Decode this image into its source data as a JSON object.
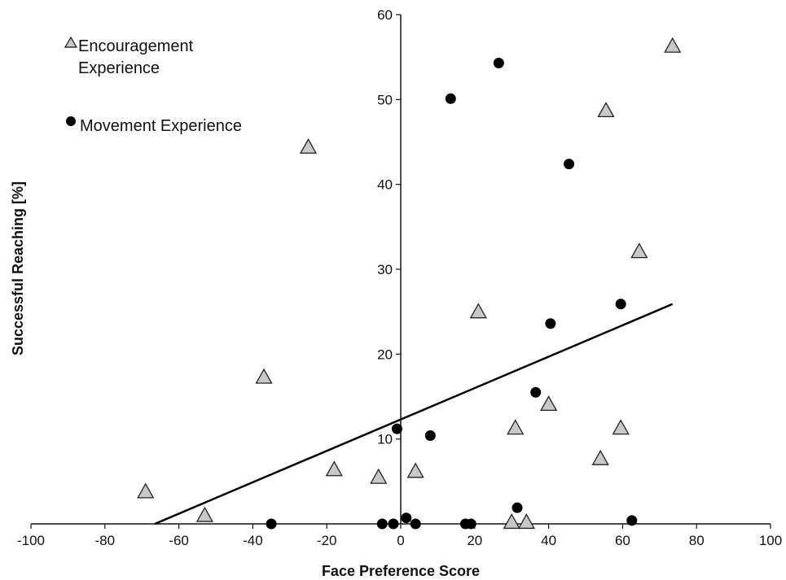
{
  "chart_data": {
    "type": "scatter",
    "xlabel": "Face Preference Score",
    "ylabel": "Successful Reaching [%]",
    "xlim": [
      -100,
      100
    ],
    "ylim": [
      0,
      60
    ],
    "x_ticks": [
      -100,
      -80,
      -60,
      -40,
      -20,
      0,
      20,
      40,
      60,
      80,
      100
    ],
    "y_ticks": [
      10,
      20,
      30,
      40,
      50,
      60
    ],
    "grid": false,
    "legend_position": "top-left",
    "series": [
      {
        "name": "Encouragement Experience",
        "marker": "triangle",
        "color": "#c8c8c8",
        "x": [
          -69,
          -53,
          -37,
          -25,
          -18,
          -6,
          4,
          21,
          31,
          30,
          34,
          40,
          54,
          55.5,
          59.5,
          64.5,
          73.5
        ],
        "y": [
          3.7,
          0.9,
          17.2,
          44.3,
          6.3,
          5.4,
          6.1,
          24.9,
          11.2,
          0.1,
          0.1,
          14.0,
          7.6,
          48.6,
          11.2,
          32.0,
          56.2
        ]
      },
      {
        "name": "Movement Experience",
        "marker": "circle",
        "color": "#000000",
        "x": [
          -35,
          -5,
          -2,
          -1,
          1.5,
          4,
          8,
          13.5,
          17.5,
          19,
          26.5,
          31.5,
          36.5,
          40.5,
          45.5,
          59.5,
          62.5
        ],
        "y": [
          0,
          0,
          0,
          11.2,
          0.7,
          0,
          10.4,
          50.1,
          0,
          0,
          54.3,
          1.9,
          15.5,
          23.6,
          42.4,
          25.9,
          0.4
        ]
      }
    ],
    "trendline": {
      "x": [
        -66.5,
        73.5
      ],
      "y": [
        0,
        25.9
      ]
    }
  },
  "legend": {
    "entries": [
      {
        "line1": "Encouragement",
        "line2": "Experience"
      },
      {
        "line1": "Movement Experience"
      }
    ]
  },
  "axes": {
    "x_title": "Face Preference Score",
    "y_title": "Successful Reaching [%]"
  }
}
